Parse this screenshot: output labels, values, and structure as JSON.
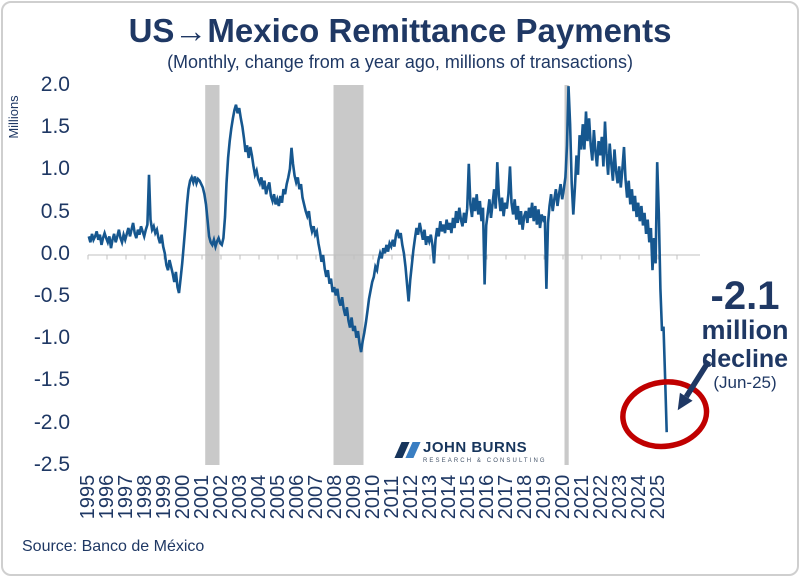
{
  "header": {
    "title": "US→Mexico Remittance Payments",
    "subtitle": "(Monthly, change from a year ago, millions of transactions)"
  },
  "colors": {
    "navy": "#1f3864",
    "line": "#16578f",
    "recession_band": "#c9c9c9",
    "axis_gray": "#c0c0c0",
    "ellipse_red": "#c00000"
  },
  "y_axis": {
    "label": "Millions",
    "ticks": [
      "2.0",
      "1.5",
      "1.0",
      "0.5",
      "0.0",
      "-0.5",
      "-1.0",
      "-1.5",
      "-2.0",
      "-2.5"
    ]
  },
  "x_axis": {
    "ticks": [
      "1995",
      "1996",
      "1997",
      "1998",
      "1999",
      "2000",
      "2001",
      "2002",
      "2003",
      "2004",
      "2005",
      "2006",
      "2007",
      "2008",
      "2009",
      "2010",
      "2011",
      "2012",
      "2013",
      "2014",
      "2015",
      "2016",
      "2017",
      "2018",
      "2019",
      "2020",
      "2021",
      "2022",
      "2023",
      "2024",
      "2025"
    ]
  },
  "annotation": {
    "value": "-2.1",
    "line2": "million",
    "line3": "decline",
    "line4": "(Jun-25)"
  },
  "logo": {
    "name": "JOHN BURNS",
    "tagline": "RESEARCH & CONSULTING"
  },
  "source": "Source: Banco de México",
  "chart_data": {
    "type": "line",
    "title": "US→Mexico Remittance Payments",
    "subtitle": "(Monthly, change from a year ago, millions of transactions)",
    "ylabel": "Millions",
    "ylim": [
      -2.5,
      2.0
    ],
    "ytick_step": 0.5,
    "x_start": "1995-01",
    "x_end": "2025-06",
    "frequency": "monthly",
    "grid": "zero-line-only",
    "legend": "none",
    "recession_shading_years": [
      [
        2001.17,
        2001.92
      ],
      [
        2007.92,
        2009.5
      ],
      [
        2020.08,
        2020.3
      ]
    ],
    "callout": {
      "text": "-2.1 million decline (Jun-25)",
      "point": "2025-06",
      "value": -2.1
    },
    "values_by_year": {
      "1995": [
        0.22,
        0.15,
        0.25,
        0.18,
        0.22,
        0.28,
        0.18,
        0.24,
        0.12,
        0.2,
        0.26,
        0.2
      ],
      "1996": [
        0.15,
        0.22,
        0.08,
        0.18,
        0.25,
        0.15,
        0.22,
        0.3,
        0.2,
        0.15,
        0.24,
        0.18
      ],
      "1997": [
        0.25,
        0.32,
        0.22,
        0.3,
        0.38,
        0.26,
        0.2,
        0.3,
        0.24,
        0.34,
        0.28,
        0.22
      ],
      "1998": [
        0.3,
        0.36,
        0.95,
        0.42,
        0.3,
        0.34,
        0.26,
        0.3,
        0.2,
        0.14,
        0.24,
        0.1
      ],
      "1999": [
        0.02,
        -0.12,
        -0.18,
        -0.06,
        -0.14,
        -0.22,
        -0.32,
        -0.2,
        -0.38,
        -0.45,
        -0.28,
        -0.1
      ],
      "2000": [
        0.12,
        0.35,
        0.6,
        0.78,
        0.88,
        0.92,
        0.86,
        0.93,
        0.85,
        0.9,
        0.88,
        0.84
      ],
      "2001": [
        0.8,
        0.72,
        0.6,
        0.42,
        0.22,
        0.15,
        0.12,
        0.18,
        0.1,
        0.16,
        0.2,
        0.14
      ],
      "2002": [
        0.12,
        0.2,
        0.45,
        0.85,
        1.15,
        1.35,
        1.5,
        1.62,
        1.72,
        1.78,
        1.68,
        1.74
      ],
      "2003": [
        1.62,
        1.52,
        1.38,
        1.22,
        1.3,
        1.15,
        1.28,
        1.18,
        1.05,
        0.95,
        1.0,
        0.9
      ],
      "2004": [
        0.85,
        0.92,
        0.78,
        0.88,
        0.72,
        0.8,
        0.86,
        0.7,
        0.64,
        0.72,
        0.6,
        0.66
      ],
      "2005": [
        0.58,
        0.7,
        0.62,
        0.78,
        0.72,
        0.84,
        0.92,
        1.02,
        1.27,
        1.08,
        0.94,
        0.86
      ],
      "2006": [
        0.92,
        0.78,
        0.84,
        0.68,
        0.6,
        0.52,
        0.46,
        0.52,
        0.36,
        0.28,
        0.34,
        0.24
      ],
      "2007": [
        0.28,
        0.14,
        0.04,
        -0.08,
        0.0,
        -0.16,
        -0.26,
        -0.18,
        -0.34,
        -0.28,
        -0.44,
        -0.38
      ],
      "2008": [
        -0.48,
        -0.4,
        -0.54,
        -0.6,
        -0.5,
        -0.64,
        -0.72,
        -0.62,
        -0.78,
        -0.86,
        -0.74,
        -0.9
      ],
      "2009": [
        -0.84,
        -0.98,
        -0.9,
        -1.05,
        -1.15,
        -1.02,
        -0.92,
        -0.8,
        -0.66,
        -0.52,
        -0.42,
        -0.32
      ],
      "2010": [
        -0.26,
        -0.14,
        -0.18,
        -0.06,
        0.02,
        -0.04,
        0.08,
        0.02,
        0.12,
        0.04,
        0.14,
        0.1
      ],
      "2011": [
        0.18,
        0.1,
        0.24,
        0.3,
        0.2,
        0.26,
        0.12,
        0.02,
        -0.14,
        -0.34,
        -0.55,
        -0.3
      ],
      "2012": [
        -0.12,
        0.06,
        0.2,
        0.32,
        0.24,
        0.38,
        0.28,
        0.18,
        0.3,
        0.12,
        0.22,
        0.16
      ],
      "2013": [
        0.24,
        0.12,
        -0.1,
        0.18,
        0.32,
        0.22,
        0.4,
        0.28,
        0.36,
        0.26,
        0.42,
        0.3
      ],
      "2014": [
        0.38,
        0.26,
        0.44,
        0.32,
        0.52,
        0.38,
        0.56,
        0.42,
        0.34,
        0.5,
        0.38,
        0.55
      ],
      "2015": [
        1.08,
        0.6,
        0.45,
        0.68,
        0.52,
        0.72,
        0.48,
        0.64,
        0.4,
        0.56,
        -0.35,
        0.35
      ],
      "2016": [
        0.5,
        0.66,
        0.44,
        0.6,
        0.78,
        0.55,
        1.1,
        0.7,
        0.52,
        0.68,
        0.46,
        0.62
      ],
      "2017": [
        0.55,
        0.72,
        1.05,
        0.62,
        0.48,
        0.66,
        0.42,
        0.58,
        0.36,
        0.52,
        0.3,
        0.46
      ],
      "2018": [
        0.52,
        0.38,
        0.56,
        0.44,
        0.62,
        0.4,
        0.58,
        0.36,
        0.54,
        0.32,
        0.48,
        0.42
      ],
      "2019": [
        0.46,
        -0.4,
        0.38,
        0.58,
        0.72,
        0.52,
        0.66,
        0.78,
        0.58,
        0.72,
        0.84,
        0.66
      ],
      "2020": [
        0.78,
        0.92,
        1.3,
        2.0,
        1.55,
        0.85,
        0.48,
        0.8,
        1.18,
        0.95,
        1.42,
        1.25
      ],
      "2021": [
        1.55,
        1.25,
        1.7,
        1.35,
        1.62,
        1.3,
        1.12,
        1.48,
        1.22,
        1.05,
        1.35,
        1.18
      ],
      "2022": [
        1.4,
        1.05,
        1.58,
        1.2,
        0.95,
        1.32,
        1.08,
        0.88,
        1.25,
        1.0,
        0.85,
        1.05
      ],
      "2023": [
        0.8,
        1.02,
        1.28,
        0.9,
        0.68,
        0.88,
        0.6,
        0.78,
        0.52,
        0.7,
        0.45,
        0.62
      ],
      "2024": [
        0.4,
        0.58,
        0.35,
        0.5,
        0.25,
        0.42,
        0.15,
        0.32,
        -0.18,
        0.2,
        -0.1,
        1.1
      ],
      "2025": [
        0.5,
        -0.4,
        -0.9,
        -0.85,
        -1.45,
        -2.1
      ]
    }
  }
}
